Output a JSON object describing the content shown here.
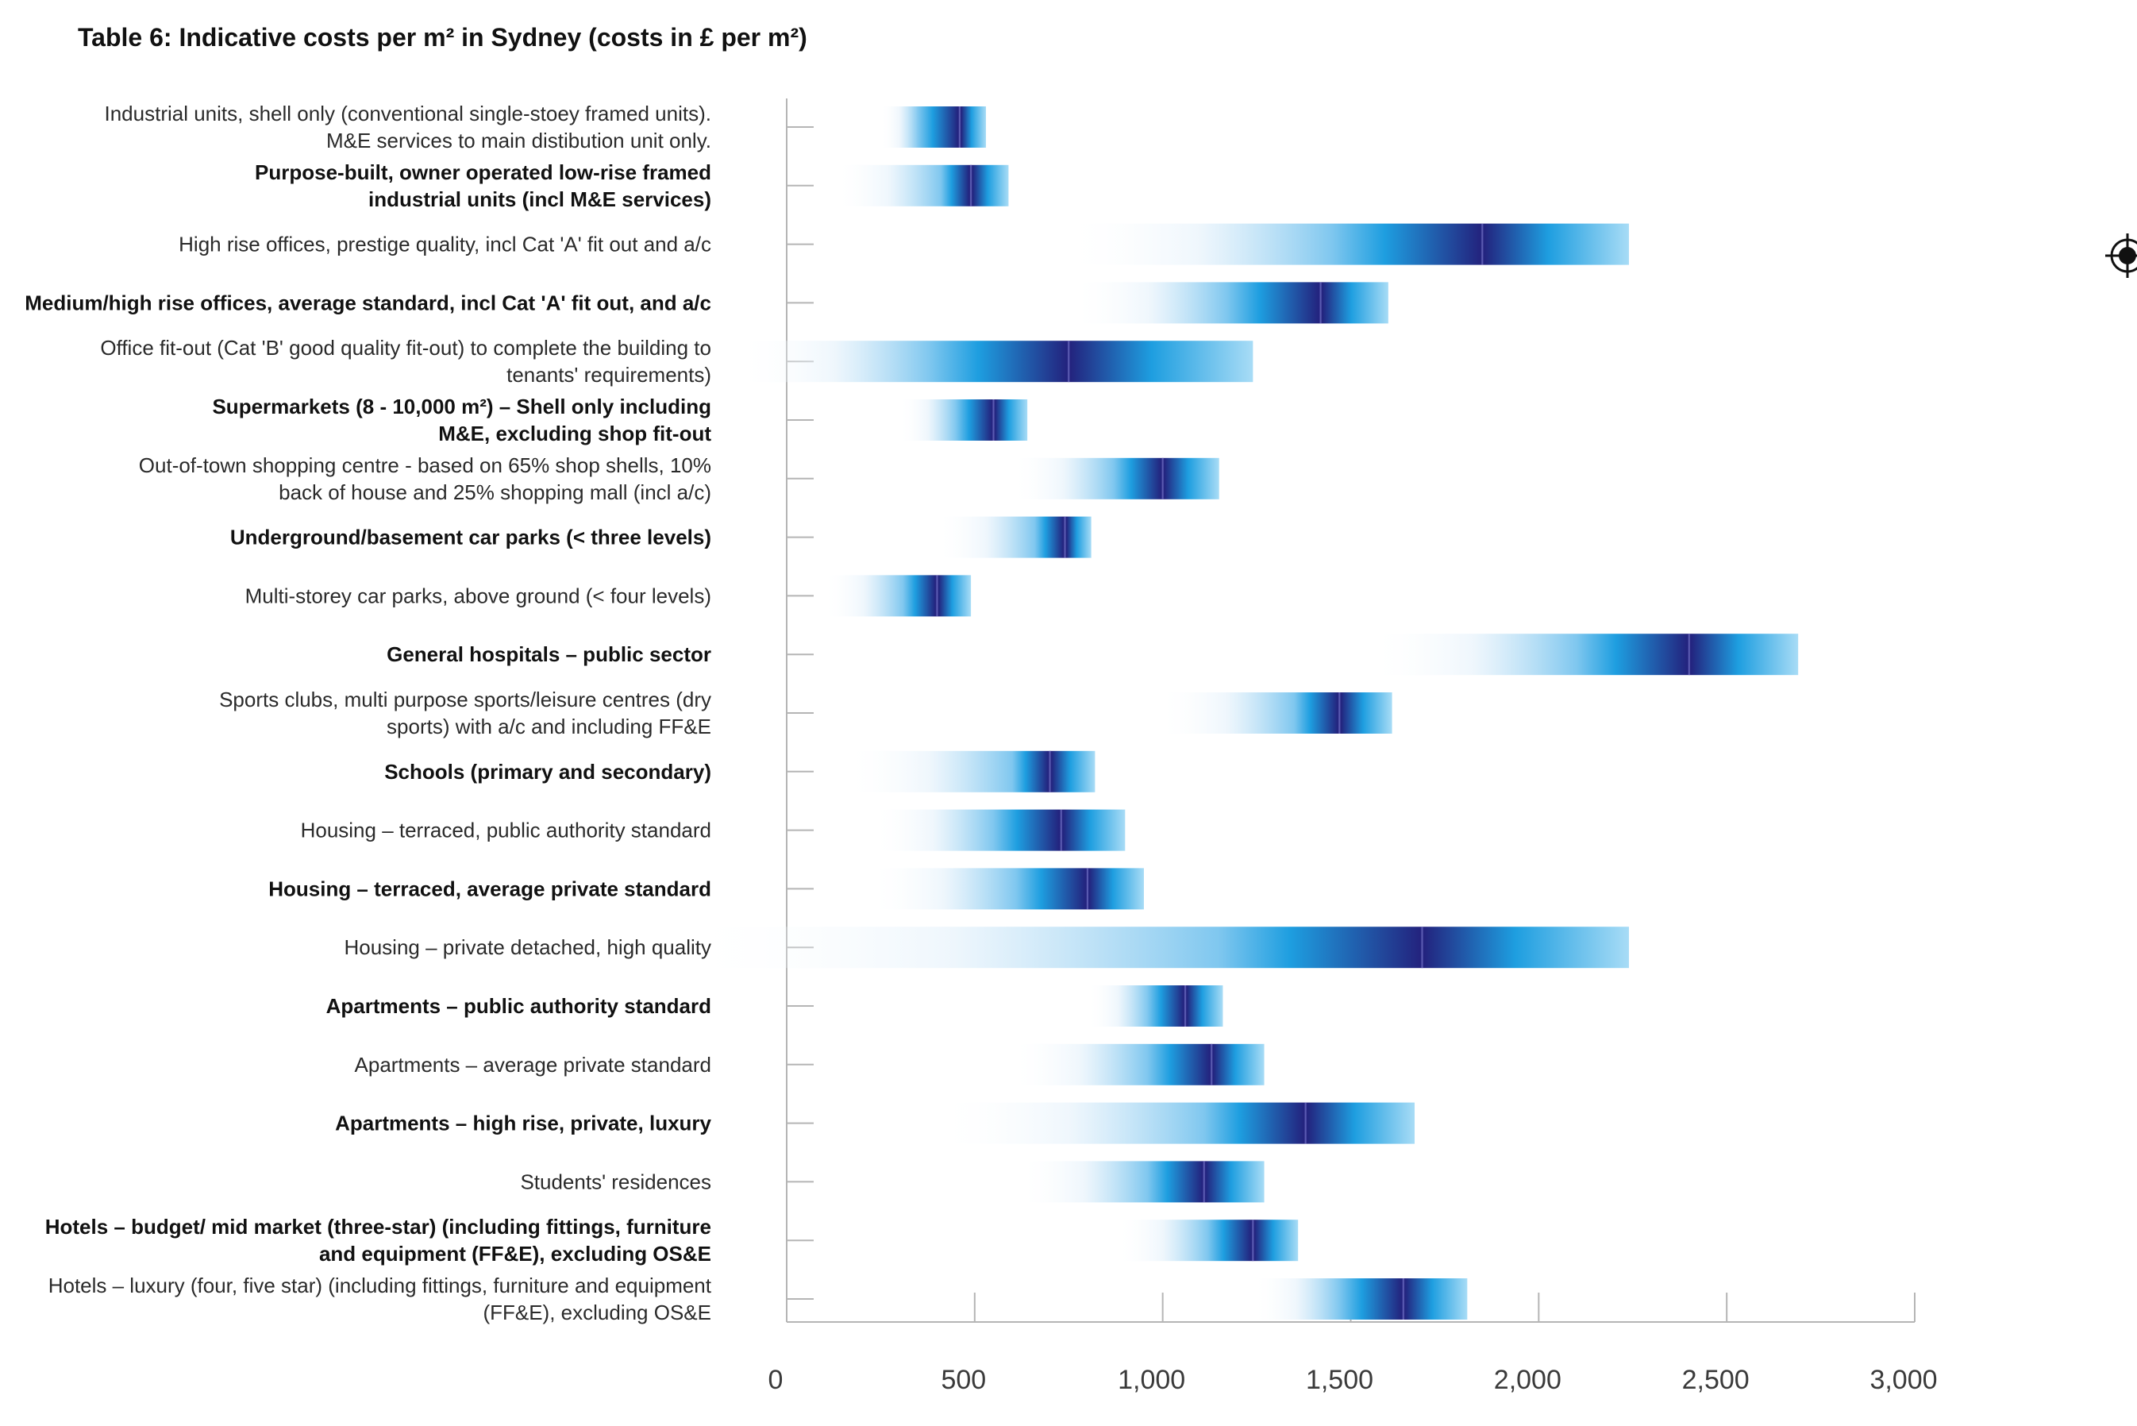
{
  "chart_data": {
    "type": "bar",
    "title": "Table 6: Indicative costs per m² in Sydney (costs in £ per m²)",
    "xlabel": "",
    "ylabel": "",
    "xlim": [
      0,
      3000
    ],
    "x_ticks": [
      "0",
      "500",
      "1,000",
      "1,500",
      "2,000",
      "2,500",
      "3,000"
    ],
    "grid": false,
    "bar_color_light": "#ffffff",
    "bar_color_mid": "#1e9ee0",
    "bar_color_dark": "#23237e",
    "rows": [
      {
        "label": [
          "Industrial units, shell only (conventional single-stoey framed units).",
          "M&E services to main distibution unit only."
        ],
        "bold": false,
        "start": 250,
        "low": 350,
        "median": 460,
        "high": 530
      },
      {
        "label": [
          "Purpose-built, owner operated low-rise framed",
          "industrial units (incl M&E services)"
        ],
        "bold": true,
        "start": 130,
        "low": 410,
        "median": 490,
        "high": 590
      },
      {
        "label": [
          "High rise offices, prestige quality, incl Cat 'A' fit out and a/c"
        ],
        "bold": false,
        "start": 740,
        "low": 1450,
        "median": 1850,
        "high": 2240
      },
      {
        "label": [
          "Medium/high rise offices, average standard, incl Cat 'A' fit out, and a/c"
        ],
        "bold": true,
        "start": 760,
        "low": 1170,
        "median": 1420,
        "high": 1600
      },
      {
        "label": [
          "Office fit-out (Cat 'B'  good quality fit-out) to complete the building to",
          "tenants' requirements)"
        ],
        "bold": false,
        "start": -130,
        "low": 380,
        "median": 750,
        "high": 1240
      },
      {
        "label": [
          "Supermarkets (8 - 10,000 m²) – Shell only including",
          "M&E, excluding shop fit-out"
        ],
        "bold": true,
        "start": 300,
        "low": 450,
        "median": 550,
        "high": 640
      },
      {
        "label": [
          "Out-of-town shopping centre - based on 65% shop shells, 10%",
          "back of house and 25% shopping mall (incl a/c)"
        ],
        "bold": false,
        "start": 600,
        "low": 870,
        "median": 1000,
        "high": 1150
      },
      {
        "label": [
          "Underground/basement car parks (< three levels)"
        ],
        "bold": true,
        "start": 400,
        "low": 660,
        "median": 740,
        "high": 810
      },
      {
        "label": [
          "Multi-storey car parks, above ground (< four levels)"
        ],
        "bold": false,
        "start": 100,
        "low": 310,
        "median": 400,
        "high": 490
      },
      {
        "label": [
          "General hospitals – public sector"
        ],
        "bold": true,
        "start": 1550,
        "low": 2100,
        "median": 2400,
        "high": 2690
      },
      {
        "label": [
          "Sports clubs, multi purpose sports/leisure centres (dry",
          "sports) with a/c and  including FF&E"
        ],
        "bold": false,
        "start": 990,
        "low": 1350,
        "median": 1470,
        "high": 1610
      },
      {
        "label": [
          "Schools  (primary and secondary)"
        ],
        "bold": true,
        "start": 160,
        "low": 600,
        "median": 700,
        "high": 820
      },
      {
        "label": [
          "Housing – terraced, public authority standard"
        ],
        "bold": false,
        "start": 230,
        "low": 550,
        "median": 730,
        "high": 900
      },
      {
        "label": [
          "Housing – terraced, average private standard"
        ],
        "bold": true,
        "start": 220,
        "low": 610,
        "median": 800,
        "high": 950
      },
      {
        "label": [
          "Housing – private detached, high quality"
        ],
        "bold": false,
        "start": -280,
        "low": 1150,
        "median": 1690,
        "high": 2240
      },
      {
        "label": [
          "Apartments – public authority standard"
        ],
        "bold": true,
        "start": 800,
        "low": 960,
        "median": 1060,
        "high": 1160
      },
      {
        "label": [
          "Apartments – average private standard"
        ],
        "bold": false,
        "start": 600,
        "low": 960,
        "median": 1130,
        "high": 1270
      },
      {
        "label": [
          "Apartments – high rise, private, luxury"
        ],
        "bold": true,
        "start": 400,
        "low": 1110,
        "median": 1380,
        "high": 1670
      },
      {
        "label": [
          "Students' residences"
        ],
        "bold": false,
        "start": 620,
        "low": 960,
        "median": 1110,
        "high": 1270
      },
      {
        "label": [
          "Hotels – budget/ mid market (three-star) (including fittings, furniture",
          "and equipment (FF&E), excluding OS&E"
        ],
        "bold": true,
        "start": 880,
        "low": 1120,
        "median": 1240,
        "high": 1360
      },
      {
        "label": [
          "Hotels – luxury (four, five star) (including fittings, furniture and equipment",
          "(FF&E), excluding OS&E"
        ],
        "bold": false,
        "start": 1240,
        "low": 1470,
        "median": 1640,
        "high": 1810
      }
    ]
  }
}
